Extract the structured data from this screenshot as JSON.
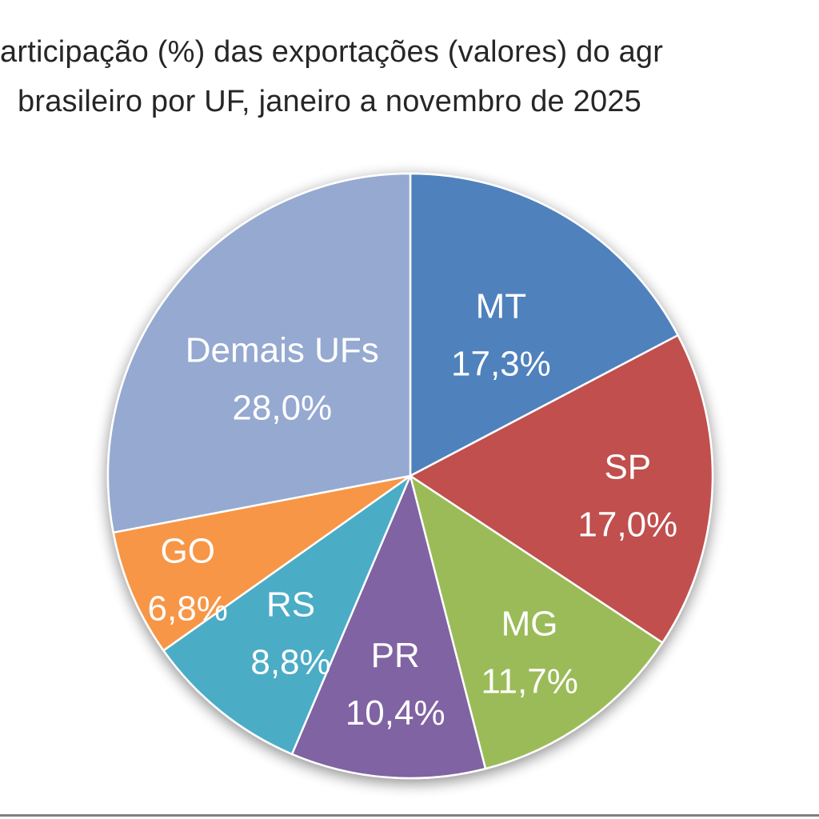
{
  "chart_data": {
    "type": "pie",
    "title_lines": [
      "articipação (%) das exportações (valores) do agr",
      "brasileiro por UF,  janeiro a novembro de 2025"
    ],
    "start_angle_deg": 0,
    "direction": "clockwise",
    "slices": [
      {
        "category": "MT",
        "value": 17.3,
        "value_label": "17,3%",
        "color": "#4F81BD"
      },
      {
        "category": "SP",
        "value": 17.0,
        "value_label": "17,0%",
        "color": "#C0504D"
      },
      {
        "category": "MG",
        "value": 11.7,
        "value_label": "11,7%",
        "color": "#9BBB59"
      },
      {
        "category": "PR",
        "value": 10.4,
        "value_label": "10,4%",
        "color": "#8064A2"
      },
      {
        "category": "RS",
        "value": 8.8,
        "value_label": "8,8%",
        "color": "#4BACC6"
      },
      {
        "category": "GO",
        "value": 6.8,
        "value_label": "6,8%",
        "color": "#F79646"
      },
      {
        "category": "Demais UFs",
        "value": 28.0,
        "value_label": "28,0%",
        "color": "#95A9D1"
      }
    ]
  }
}
